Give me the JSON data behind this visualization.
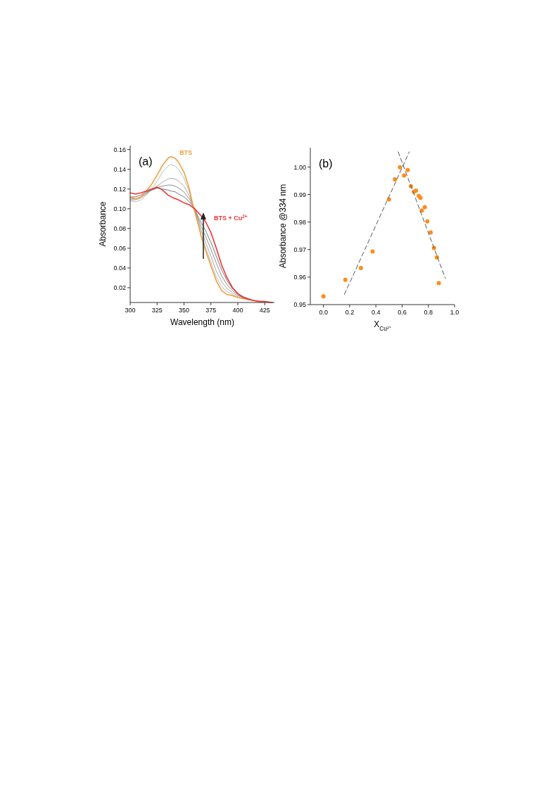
{
  "chart_data": [
    {
      "type": "line",
      "xlabel": "Wavelength (nm)",
      "ylabel": "Absorbance",
      "annotations": [
        "(a)"
      ],
      "xlim": [
        300,
        434
      ],
      "ylim": [
        0.005,
        0.164
      ],
      "xticks": [
        300,
        325,
        350,
        375,
        400,
        425
      ],
      "yticks": [
        0.02,
        0.04,
        0.06,
        0.08,
        {
          "value": 0.1,
          "label": "0.10"
        },
        0.12,
        0.14,
        0.16
      ],
      "series": [
        {
          "color": "#bdbdbd",
          "x": [
            300,
            305,
            310,
            315,
            320,
            325,
            330,
            335,
            338,
            342,
            345,
            350,
            355,
            358,
            360,
            363,
            366,
            370,
            375,
            380,
            385,
            390,
            395,
            400,
            405,
            410,
            415,
            420,
            425
          ],
          "values": [
            0.108,
            0.107,
            0.109,
            0.114,
            0.12,
            0.128,
            0.137,
            0.143,
            0.145,
            0.143,
            0.14,
            0.131,
            0.117,
            0.104,
            0.097,
            0.086,
            0.074,
            0.061,
            0.046,
            0.031,
            0.021,
            0.016,
            0.013,
            0.011,
            0.009,
            0.008,
            0.007,
            0.006,
            0.006
          ]
        },
        {
          "color": "#a8a8a8",
          "x": [
            300,
            305,
            310,
            315,
            320,
            325,
            330,
            335,
            338,
            342,
            345,
            350,
            355,
            358,
            360,
            363,
            366,
            370,
            375,
            380,
            385,
            390,
            395,
            400,
            405,
            410,
            415,
            420,
            425
          ],
          "values": [
            0.109,
            0.109,
            0.111,
            0.115,
            0.119,
            0.123,
            0.127,
            0.13,
            0.131,
            0.13,
            0.128,
            0.123,
            0.113,
            0.104,
            0.098,
            0.088,
            0.078,
            0.066,
            0.052,
            0.037,
            0.026,
            0.019,
            0.015,
            0.012,
            0.01,
            0.008,
            0.007,
            0.006,
            0.006
          ]
        },
        {
          "color": "#8f8f8f",
          "x": [
            300,
            305,
            310,
            315,
            320,
            325,
            330,
            335,
            338,
            342,
            345,
            350,
            355,
            358,
            360,
            363,
            366,
            370,
            375,
            380,
            385,
            390,
            395,
            400,
            405,
            410,
            415,
            420,
            425
          ],
          "values": [
            0.11,
            0.11,
            0.112,
            0.116,
            0.119,
            0.121,
            0.123,
            0.124,
            0.124,
            0.123,
            0.121,
            0.117,
            0.11,
            0.104,
            0.099,
            0.09,
            0.082,
            0.072,
            0.059,
            0.045,
            0.032,
            0.023,
            0.017,
            0.013,
            0.01,
            0.008,
            0.007,
            0.006,
            0.006
          ]
        },
        {
          "color": "#777777",
          "x": [
            300,
            305,
            310,
            315,
            320,
            325,
            330,
            335,
            338,
            342,
            345,
            350,
            355,
            358,
            360,
            363,
            366,
            370,
            375,
            380,
            385,
            390,
            395,
            400,
            405,
            410,
            415,
            420,
            425
          ],
          "values": [
            0.112,
            0.112,
            0.114,
            0.117,
            0.119,
            0.121,
            0.12,
            0.119,
            0.118,
            0.117,
            0.115,
            0.112,
            0.107,
            0.103,
            0.1,
            0.092,
            0.086,
            0.078,
            0.066,
            0.052,
            0.038,
            0.027,
            0.019,
            0.014,
            0.011,
            0.009,
            0.007,
            0.006,
            0.006
          ]
        },
        {
          "name": "BTS",
          "color": "#f0a040",
          "x": [
            300,
            305,
            310,
            315,
            320,
            325,
            330,
            335,
            338,
            342,
            345,
            350,
            355,
            358,
            360,
            363,
            366,
            370,
            375,
            380,
            385,
            390,
            395,
            400,
            405,
            410,
            415,
            420,
            425
          ],
          "values": [
            0.112,
            0.11,
            0.112,
            0.118,
            0.125,
            0.134,
            0.144,
            0.151,
            0.153,
            0.151,
            0.147,
            0.137,
            0.12,
            0.105,
            0.097,
            0.085,
            0.072,
            0.058,
            0.042,
            0.027,
            0.017,
            0.013,
            0.012,
            0.01,
            0.009,
            0.008,
            0.007,
            0.006,
            0.006
          ]
        },
        {
          "name": "BTS + Cu$^{2+}$",
          "color": "#ee3333",
          "x": [
            300,
            305,
            310,
            315,
            320,
            325,
            330,
            335,
            340,
            345,
            350,
            355,
            360,
            365,
            370,
            375,
            380,
            385,
            390,
            395,
            400,
            405,
            410,
            415,
            420,
            425,
            432
          ],
          "values": [
            0.116,
            0.115,
            0.116,
            0.118,
            0.12,
            0.122,
            0.119,
            0.114,
            0.111,
            0.109,
            0.106,
            0.104,
            0.1,
            0.094,
            0.087,
            0.076,
            0.06,
            0.043,
            0.03,
            0.02,
            0.014,
            0.01,
            0.008,
            0.007,
            0.006,
            0.006,
            0.005
          ]
        }
      ]
    },
    {
      "type": "scatter",
      "xlabel": "X$_{Cu²⁺}$",
      "ylabel": "Absorbance @334 nm",
      "annotations": [
        "(b)"
      ],
      "xlim": [
        -0.1,
        1.0
      ],
      "ylim": [
        0.95,
        1.007
      ],
      "xticks": [
        {
          "value": 0,
          "label": "0.0"
        },
        0.2,
        0.4,
        0.6,
        0.8,
        {
          "value": 1,
          "label": "1.0"
        }
      ],
      "yticks": [
        0.95,
        0.96,
        0.97,
        0.98,
        0.99,
        {
          "value": 1,
          "label": "1.00"
        }
      ],
      "marker": "circle",
      "series": [
        {
          "color": "#ff8c1a",
          "x": [
            0,
            0.167,
            0.286,
            0.375,
            0.5,
            0.545,
            0.583,
            0.615,
            0.643,
            0.667,
            0.69,
            0.706,
            0.727,
            0.74,
            0.75,
            0.773,
            0.792,
            0.818,
            0.843,
            0.865,
            0.88
          ],
          "values": [
            0.953,
            0.959,
            0.9633,
            0.9693,
            0.9882,
            0.9955,
            0.9999,
            0.9969,
            0.9989,
            0.993,
            0.991,
            0.9914,
            0.9895,
            0.9888,
            0.9842,
            0.9854,
            0.9802,
            0.9762,
            0.9706,
            0.9672,
            0.9578
          ]
        },
        {
          "type": "line",
          "marker": "none",
          "line_style": "dashed",
          "color": "#555555",
          "x": [
            0.16,
            0.655
          ],
          "values": [
            0.9537,
            1.0055
          ]
        },
        {
          "type": "line",
          "marker": "none",
          "line_style": "dashed",
          "color": "#555555",
          "x": [
            0.57,
            0.93
          ],
          "values": [
            1.0055,
            0.9595
          ]
        }
      ]
    }
  ]
}
